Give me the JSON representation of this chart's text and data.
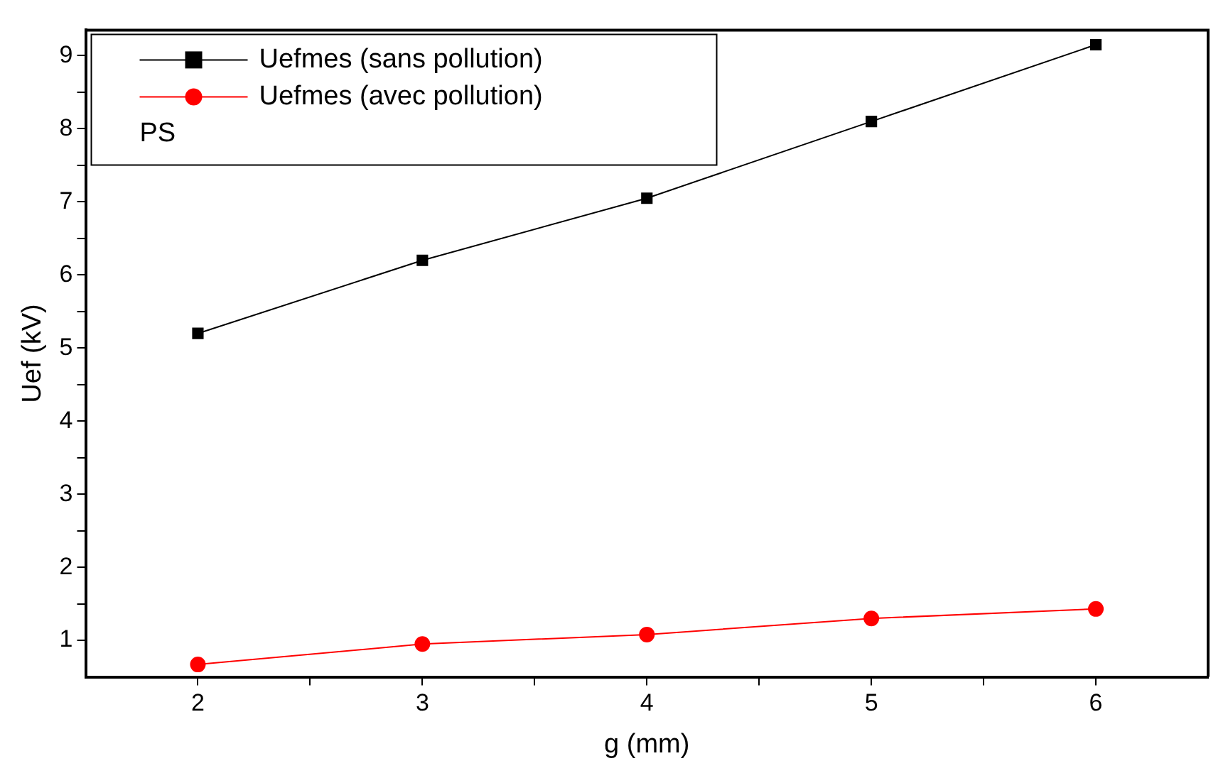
{
  "chart_data": {
    "type": "line",
    "xlabel": "g (mm)",
    "ylabel": "Uef (kV)",
    "legend_title": "PS",
    "x": [
      2,
      3,
      4,
      5,
      6
    ],
    "series": [
      {
        "name": "Uefmes (sans pollution)",
        "color": "#000000",
        "marker": "square",
        "values": [
          5.2,
          6.2,
          7.05,
          8.1,
          9.15
        ]
      },
      {
        "name": "Uefmes (avec pollution)",
        "color": "#ff0000",
        "marker": "circle",
        "values": [
          0.67,
          0.95,
          1.08,
          1.3,
          1.43
        ]
      }
    ],
    "xlim": [
      1.5,
      6.5
    ],
    "xticks": [
      2,
      {
        "value": 2.5,
        "label": null
      },
      3,
      {
        "value": 3.5,
        "label": null
      },
      4,
      {
        "value": 4.5,
        "label": null
      },
      5,
      {
        "value": 5.5,
        "label": null
      },
      6
    ],
    "ylim": [
      0.5,
      9.35
    ],
    "yticks": [
      1,
      {
        "value": 1.5,
        "label": null
      },
      2,
      {
        "value": 2.5,
        "label": null
      },
      3,
      {
        "value": 3.5,
        "label": null
      },
      4,
      {
        "value": 4.5,
        "label": null
      },
      5,
      {
        "value": 5.5,
        "label": null
      },
      6,
      {
        "value": 6.5,
        "label": null
      },
      7,
      {
        "value": 7.5,
        "label": null
      },
      8,
      {
        "value": 8.5,
        "label": null
      },
      9
    ],
    "grid": false,
    "legend": "top left",
    "line_style": "solid"
  }
}
